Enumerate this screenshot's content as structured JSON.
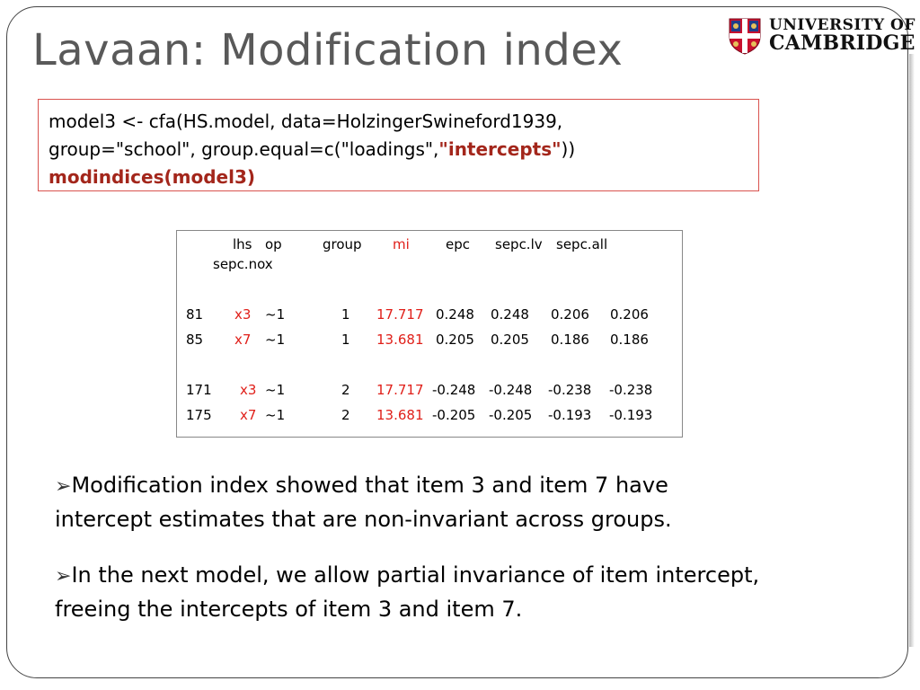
{
  "title": "Lavaan: Modification index",
  "logo": {
    "line1": "UNIVERSITY OF",
    "line2": "CAMBRIDGE"
  },
  "code": {
    "line1": "model3 <- cfa(HS.model, data=HolzingerSwineford1939,",
    "line2_a": "group=\"school\",  group.equal=c(\"loadings\",",
    "line2_b": "\"intercepts\"",
    "line2_c": "))",
    "line3": "modindices(model3)"
  },
  "output": {
    "headers": {
      "lhs": "lhs",
      "op": "op",
      "group": "group",
      "mi": "mi",
      "epc": "epc",
      "sepc_lv": "sepc.lv",
      "sepc_all": "sepc.all",
      "sepc_nox": "sepc.nox"
    },
    "rows": [
      {
        "id": "81",
        "lhs": "x3",
        "op": "~1",
        "group": "1",
        "mi": "17.717",
        "epc": "0.248",
        "sepc_lv": "0.248",
        "sepc_all": "0.206",
        "sepc_nox": "0.206"
      },
      {
        "id": "85",
        "lhs": "x7",
        "op": "~1",
        "group": "1",
        "mi": "13.681",
        "epc": "0.205",
        "sepc_lv": "0.205",
        "sepc_all": "0.186",
        "sepc_nox": "0.186"
      },
      {
        "id": "171",
        "lhs": "x3",
        "op": "~1",
        "group": "2",
        "mi": "17.717",
        "epc": "-0.248",
        "sepc_lv": "-0.248",
        "sepc_all": "-0.238",
        "sepc_nox": "-0.238"
      },
      {
        "id": "175",
        "lhs": "x7",
        "op": "~1",
        "group": "2",
        "mi": "13.681",
        "epc": "-0.205",
        "sepc_lv": "-0.205",
        "sepc_all": "-0.193",
        "sepc_nox": "-0.193"
      }
    ]
  },
  "bullets": [
    {
      "line1": "Modification index showed that item 3 and item 7 have",
      "line2": "intercept estimates that are non-invariant across groups."
    },
    {
      "line1": "In the next model, we allow partial invariance of item intercept,",
      "line2": "freeing the intercepts of item 3 and item 7."
    }
  ],
  "colors": {
    "accent_red": "#a3261b",
    "highlight_red": "#e0201a",
    "title_gray": "#595959"
  }
}
